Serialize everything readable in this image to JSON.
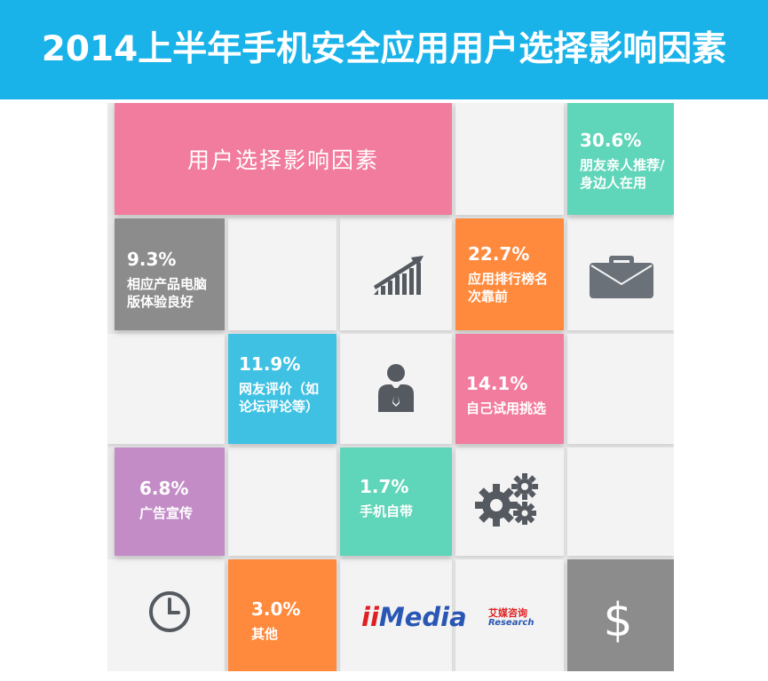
{
  "header": {
    "title": "2014上半年手机安全应用用户选择影响因素"
  },
  "board": {
    "title": "用户选择影响因素"
  },
  "chart_data": {
    "type": "table",
    "title": "2014上半年手机安全应用用户选择影响因素",
    "categories": [
      "朋友亲人推荐/身边人在用",
      "应用排行榜名次靠前",
      "自己试用挑选",
      "网友评价（如论坛评论等）",
      "相应产品电脑版体验良好",
      "广告宣传",
      "其他",
      "手机自带"
    ],
    "values": [
      30.6,
      22.7,
      14.1,
      11.9,
      9.3,
      6.8,
      3.0,
      1.7
    ],
    "value_labels": [
      "30.6%",
      "22.7%",
      "14.1%",
      "11.9%",
      "9.3%",
      "6.8%",
      "3.0%",
      "1.7%"
    ],
    "label_lines": [
      [
        "朋友亲人推荐/",
        "身边人在用"
      ],
      [
        "应用排行榜名",
        "次靠前"
      ],
      [
        "自己试用挑选"
      ],
      [
        "网友评价（如",
        "论坛评论等）"
      ],
      [
        "相应产品电脑",
        "版体验良好"
      ],
      [
        "广告宣传"
      ],
      [
        "其他"
      ],
      [
        "手机自带"
      ]
    ],
    "colors": [
      "#5fd5b9",
      "#ff8a3d",
      "#f27c9e",
      "#3fc1e3",
      "#8c8c8c",
      "#c38cc7",
      "#ff8a3d",
      "#5fd5b9"
    ]
  },
  "icons": [
    "growth-chart-icon",
    "briefcase-icon",
    "businessman-icon",
    "gears-icon",
    "clock-icon",
    "dollar-icon"
  ],
  "logo": {
    "brand": "iiMedia",
    "cn": "艾媒咨询",
    "en": "Research"
  }
}
